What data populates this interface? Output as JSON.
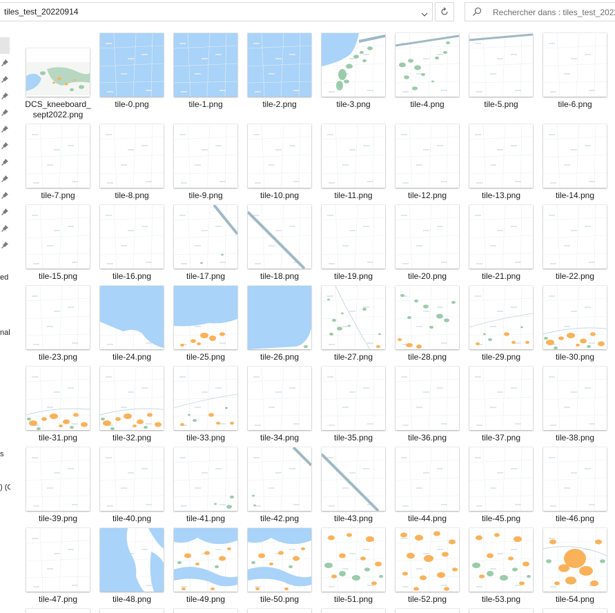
{
  "address_bar": {
    "path": "tiles_test_20220914"
  },
  "search": {
    "placeholder": "Rechercher dans : tiles_test_2022..."
  },
  "nav_fragments": [
    "ed",
    "nal",
    "s",
    ") (C"
  ],
  "colors": {
    "water": "#a9d3f8",
    "urban": "#f9b25a",
    "forest": "#9ccbaa",
    "border_line": "#9fb8c4",
    "selection": "#e5e5e5"
  },
  "files": [
    {
      "name": "DCS_kneeboard_\nsept2022.png",
      "type": "overview"
    },
    {
      "name": "tile-0.png",
      "type": "water"
    },
    {
      "name": "tile-1.png",
      "type": "water"
    },
    {
      "name": "tile-2.png",
      "type": "water"
    },
    {
      "name": "tile-3.png",
      "type": "coast-green"
    },
    {
      "name": "tile-4.png",
      "type": "green-line"
    },
    {
      "name": "tile-5.png",
      "type": "line-top"
    },
    {
      "name": "tile-6.png",
      "type": "blank"
    },
    {
      "name": "tile-7.png",
      "type": "blank"
    },
    {
      "name": "tile-8.png",
      "type": "blank"
    },
    {
      "name": "tile-9.png",
      "type": "blank"
    },
    {
      "name": "tile-10.png",
      "type": "blank"
    },
    {
      "name": "tile-11.png",
      "type": "blank"
    },
    {
      "name": "tile-12.png",
      "type": "blank"
    },
    {
      "name": "tile-13.png",
      "type": "blank"
    },
    {
      "name": "tile-14.png",
      "type": "blank"
    },
    {
      "name": "tile-15.png",
      "type": "blank"
    },
    {
      "name": "tile-16.png",
      "type": "blank"
    },
    {
      "name": "tile-17.png",
      "type": "diag-short"
    },
    {
      "name": "tile-18.png",
      "type": "diag"
    },
    {
      "name": "tile-19.png",
      "type": "blank"
    },
    {
      "name": "tile-20.png",
      "type": "blank"
    },
    {
      "name": "tile-21.png",
      "type": "blank"
    },
    {
      "name": "tile-22.png",
      "type": "blank"
    },
    {
      "name": "tile-23.png",
      "type": "blank"
    },
    {
      "name": "tile-24.png",
      "type": "water-top"
    },
    {
      "name": "tile-25.png",
      "type": "water-urban"
    },
    {
      "name": "tile-26.png",
      "type": "water-round"
    },
    {
      "name": "tile-27.png",
      "type": "green-sparse"
    },
    {
      "name": "tile-28.png",
      "type": "green-urban"
    },
    {
      "name": "tile-29.png",
      "type": "urban-light"
    },
    {
      "name": "tile-30.png",
      "type": "urban-bottom"
    },
    {
      "name": "tile-31.png",
      "type": "urban-bottom"
    },
    {
      "name": "tile-32.png",
      "type": "urban-bottom"
    },
    {
      "name": "tile-33.png",
      "type": "urban-light"
    },
    {
      "name": "tile-34.png",
      "type": "blank"
    },
    {
      "name": "tile-35.png",
      "type": "blank"
    },
    {
      "name": "tile-36.png",
      "type": "blank"
    },
    {
      "name": "tile-37.png",
      "type": "blank"
    },
    {
      "name": "tile-38.png",
      "type": "blank"
    },
    {
      "name": "tile-39.png",
      "type": "blank"
    },
    {
      "name": "tile-40.png",
      "type": "blank"
    },
    {
      "name": "tile-41.png",
      "type": "green-few"
    },
    {
      "name": "tile-42.png",
      "type": "diag-corner"
    },
    {
      "name": "tile-43.png",
      "type": "diag"
    },
    {
      "name": "tile-44.png",
      "type": "blank"
    },
    {
      "name": "tile-45.png",
      "type": "blank"
    },
    {
      "name": "tile-46.png",
      "type": "blank"
    },
    {
      "name": "tile-47.png",
      "type": "blank"
    },
    {
      "name": "tile-48.png",
      "type": "water-lake"
    },
    {
      "name": "tile-49.png",
      "type": "water-urban-mix"
    },
    {
      "name": "tile-50.png",
      "type": "water-urban-mix"
    },
    {
      "name": "tile-51.png",
      "type": "urban-green"
    },
    {
      "name": "tile-52.png",
      "type": "urban-dense"
    },
    {
      "name": "tile-53.png",
      "type": "urban-green"
    },
    {
      "name": "tile-54.png",
      "type": "urban-city"
    }
  ]
}
